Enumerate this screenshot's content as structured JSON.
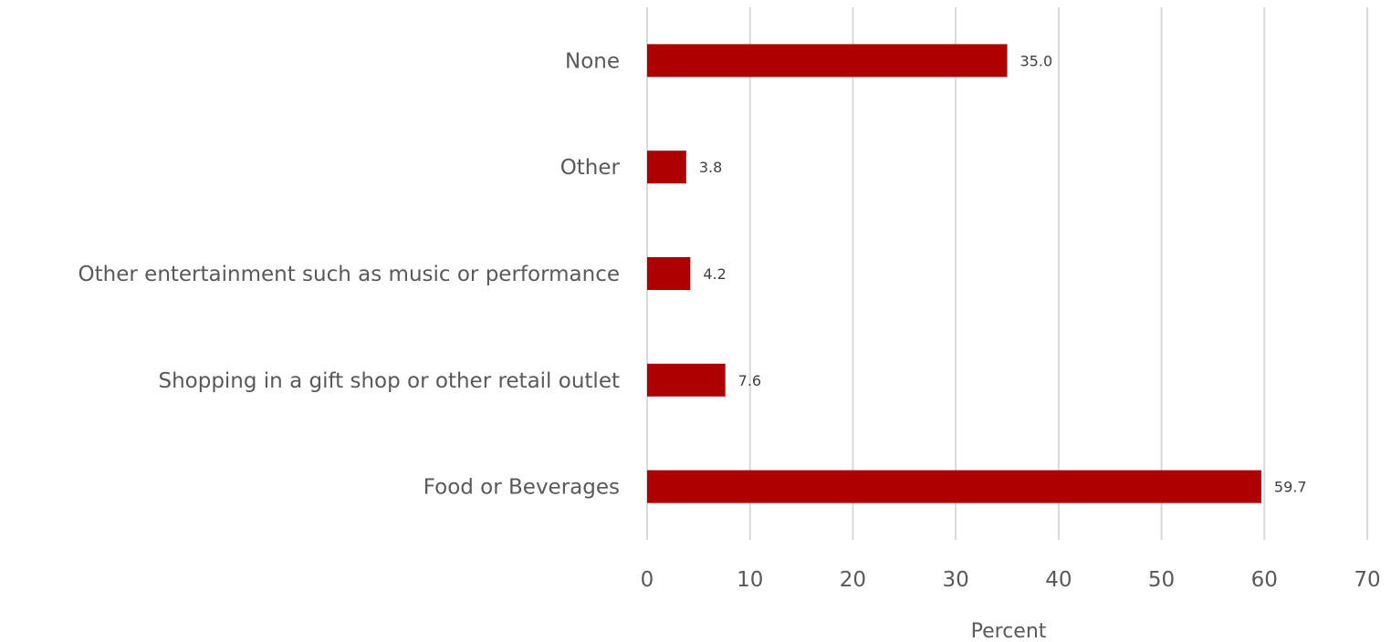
{
  "chart_data": {
    "type": "bar",
    "orientation": "horizontal",
    "categories": [
      "None",
      "Other",
      "Other entertainment such as music or performance",
      "Shopping in a gift shop or other retail outlet",
      "Food or Beverages"
    ],
    "values": [
      35.0,
      3.8,
      4.2,
      7.6,
      59.7
    ],
    "value_labels": [
      "35.0",
      "3.8",
      "4.2",
      "7.6",
      "59.7"
    ],
    "xlabel": "Percent",
    "ylabel": "",
    "xlim": [
      0,
      70
    ],
    "x_ticks": [
      0,
      10,
      20,
      30,
      40,
      50,
      60,
      70
    ],
    "grid": "vertical",
    "legend": "none",
    "bar_color": "#AE0000",
    "grid_color": "#D9D9D9"
  }
}
